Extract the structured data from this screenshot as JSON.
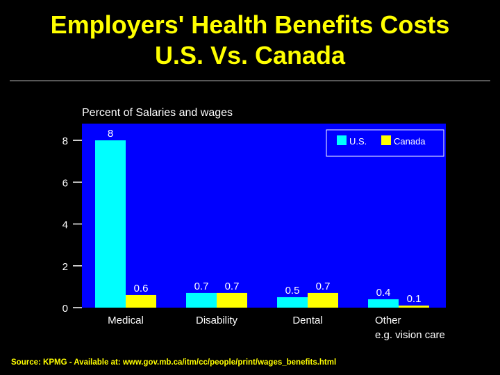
{
  "header": {
    "title_line1": "Employers' Health Benefits Costs",
    "title_line2": "U.S. Vs. Canada"
  },
  "footer": {
    "source": "Source: KPMG - Available at: www.gov.mb.ca/itm/cc/people/print/wages_benefits.html"
  },
  "colors": {
    "background": "#000000",
    "title": "#ffff00",
    "plot_area": "#0000ff",
    "us": "#00ffff",
    "canada": "#ffff00",
    "text": "#ffffff"
  },
  "chart_data": {
    "type": "bar",
    "title": "Percent of Salaries and wages",
    "categories": [
      "Medical",
      "Disability",
      "Dental",
      "Other e.g. vision care"
    ],
    "category_lines": [
      [
        "Medical"
      ],
      [
        "Disability"
      ],
      [
        "Dental"
      ],
      [
        "Other",
        "e.g. vision care"
      ]
    ],
    "series": [
      {
        "name": "U.S.",
        "values": [
          8,
          0.7,
          0.5,
          0.4
        ],
        "labels": [
          "8",
          "0.7",
          "0.5",
          "0.4"
        ]
      },
      {
        "name": "Canada",
        "values": [
          0.6,
          0.7,
          0.7,
          0.1
        ],
        "labels": [
          "0.6",
          "0.7",
          "0.7",
          "0.1"
        ]
      }
    ],
    "ylim": [
      0,
      8.8
    ],
    "yticks": [
      0,
      2,
      4,
      6,
      8
    ],
    "legend_position": "top-right",
    "grid": false
  }
}
